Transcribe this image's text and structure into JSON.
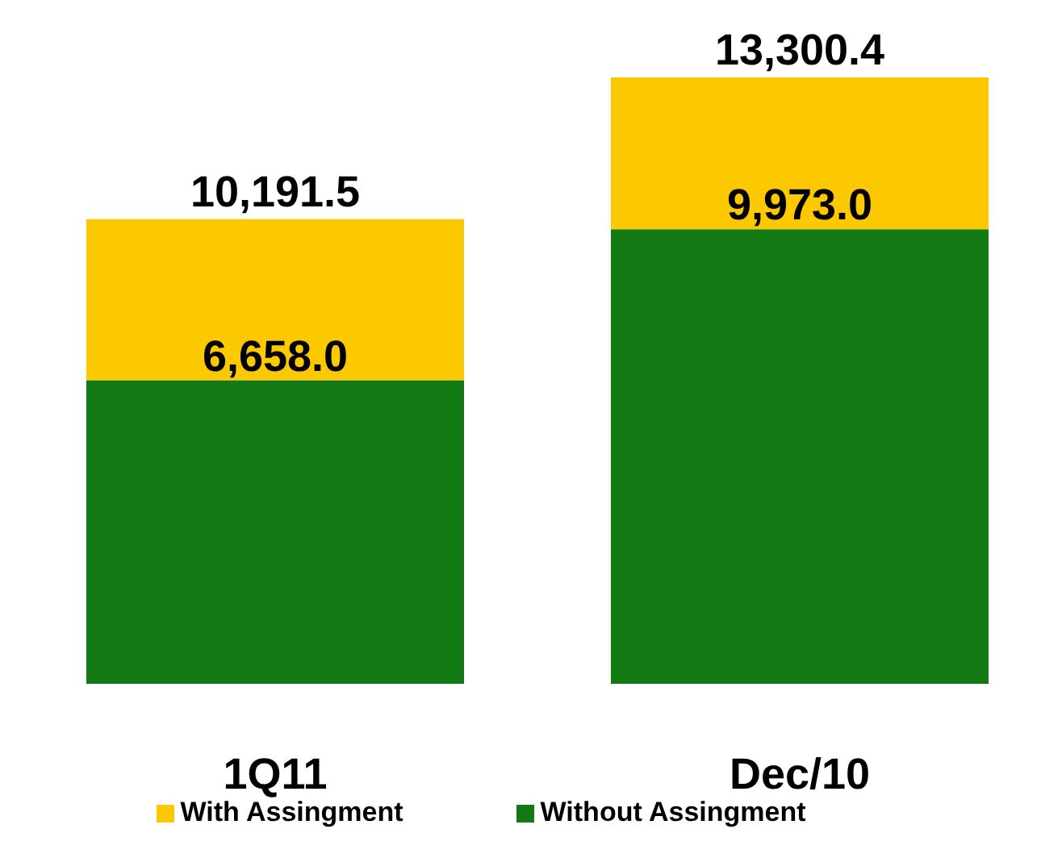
{
  "chart_data": {
    "type": "bar",
    "stacked": true,
    "categories": [
      "1Q11",
      "Dec/10"
    ],
    "series": [
      {
        "name": "Without Assingment",
        "color": "#137a13",
        "values": [
          6658.0,
          9973.0
        ],
        "value_labels": [
          "6,658.0",
          "9,973.0"
        ]
      },
      {
        "name": "With Assingment",
        "color": "#fcc800",
        "values": [
          3533.5,
          3327.4
        ]
      }
    ],
    "totals": [
      "10,191.5",
      "13,300.4"
    ],
    "legend": "bottom"
  }
}
